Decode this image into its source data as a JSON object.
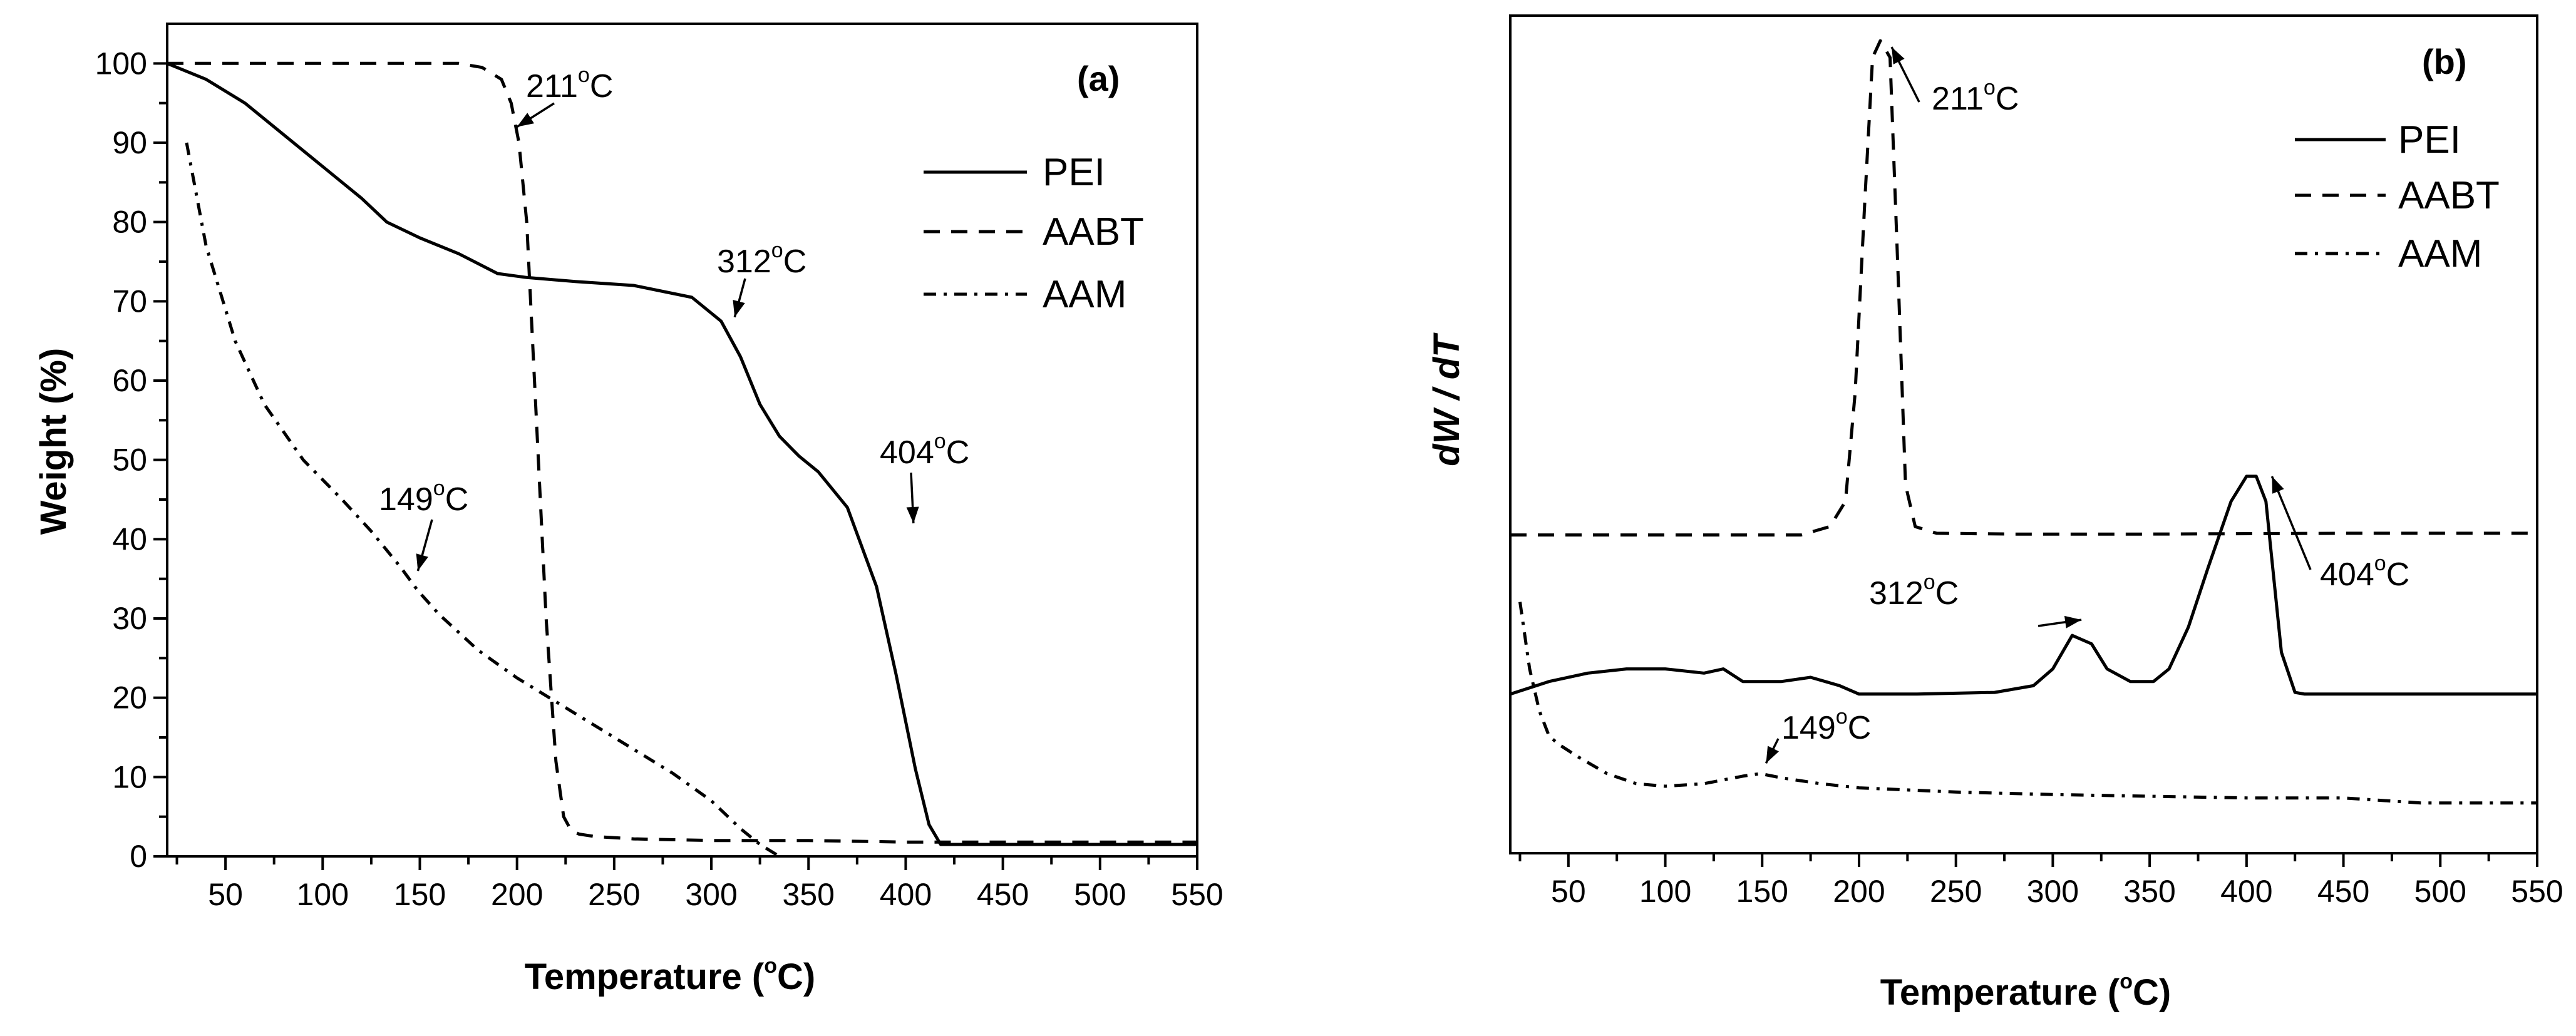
{
  "chart_data": [
    {
      "type": "line",
      "panel_label": "(a)",
      "xlabel_main": "Temperature (",
      "xlabel_sup": "o",
      "xlabel_tail": "C)",
      "ylabel": "Weight (%)",
      "xlim": [
        20,
        550
      ],
      "ylim": [
        0,
        105
      ],
      "xticks": [
        50,
        100,
        150,
        200,
        250,
        300,
        350,
        400,
        450,
        500,
        550
      ],
      "yticks": [
        0,
        10,
        20,
        30,
        40,
        50,
        60,
        70,
        80,
        90,
        100
      ],
      "legend_position": "top-right",
      "series": [
        {
          "name": "PEI",
          "style": "solid",
          "x": [
            20,
            40,
            60,
            80,
            100,
            120,
            133,
            150,
            170,
            190,
            205,
            230,
            260,
            290,
            305,
            315,
            325,
            335,
            345,
            355,
            370,
            385,
            395,
            405,
            412,
            418,
            422,
            430,
            450,
            500,
            550
          ],
          "y": [
            100,
            98,
            95,
            91,
            87,
            83,
            80,
            78,
            76,
            73.5,
            73,
            72.5,
            72,
            70.5,
            67.5,
            63,
            57,
            53,
            50.5,
            48.5,
            44,
            34,
            23,
            11,
            4,
            1.5,
            1.5,
            1.5,
            1.5,
            1.5,
            1.5
          ]
        },
        {
          "name": "AABT",
          "style": "dashed",
          "x": [
            20,
            100,
            150,
            170,
            182,
            192,
            197,
            201,
            205,
            210,
            215,
            220,
            224,
            228,
            232,
            240,
            260,
            300,
            350,
            400,
            450,
            500,
            550
          ],
          "y": [
            100,
            100,
            100,
            100,
            99.5,
            98,
            95,
            90,
            80,
            55,
            30,
            12,
            5,
            3.2,
            2.8,
            2.5,
            2.2,
            2,
            2,
            1.8,
            1.8,
            1.8,
            1.8
          ],
          "annotation": {
            "label": "211",
            "unit": "C",
            "at": [
              200,
              92
            ]
          }
        },
        {
          "name": "AAM",
          "style": "dash-dot",
          "x": [
            30,
            40,
            55,
            70,
            90,
            110,
            125,
            140,
            149,
            160,
            180,
            200,
            220,
            250,
            280,
            300,
            315,
            325,
            335
          ],
          "y": [
            90,
            77,
            65,
            57,
            50,
            45,
            41,
            36.5,
            33.5,
            30.5,
            26,
            22.5,
            19.5,
            15,
            10.5,
            7,
            3.5,
            1.5,
            0
          ],
          "annotation": {
            "label": "149",
            "unit": "C",
            "at": [
              149,
              36
            ]
          }
        }
      ],
      "annotations": [
        {
          "label": "211",
          "unit": "C",
          "target": [
            200,
            92
          ]
        },
        {
          "label": "312",
          "unit": "C",
          "target": [
            312,
            68
          ]
        },
        {
          "label": "404",
          "unit": "C",
          "target": [
            404,
            42
          ]
        },
        {
          "label": "149",
          "unit": "C",
          "target": [
            149,
            36
          ]
        }
      ]
    },
    {
      "type": "line",
      "panel_label": "(b)",
      "xlabel_main": "Temperature (",
      "xlabel_sup": "o",
      "xlabel_tail": "C)",
      "ylabel": "dW / dT",
      "xlim": [
        20,
        550
      ],
      "ylim": [
        0,
        100
      ],
      "xticks": [
        50,
        100,
        150,
        200,
        250,
        300,
        350,
        400,
        450,
        500,
        550
      ],
      "yticks": [],
      "legend_position": "top-right",
      "series": [
        {
          "name": "PEI",
          "style": "solid",
          "x": [
            20,
            40,
            60,
            80,
            100,
            120,
            130,
            140,
            160,
            175,
            190,
            200,
            230,
            270,
            290,
            300,
            310,
            320,
            328,
            340,
            352,
            360,
            370,
            380,
            392,
            400,
            405,
            410,
            418,
            425,
            430,
            450,
            500,
            550
          ],
          "y": [
            19,
            20.5,
            21.5,
            22,
            22,
            21.5,
            22,
            20.5,
            20.5,
            21,
            20,
            19,
            19,
            19.2,
            20,
            22,
            26,
            25,
            22,
            20.5,
            20.5,
            22,
            27,
            34,
            42,
            45,
            45,
            42,
            24,
            19.2,
            19,
            19,
            19,
            19
          ],
          "annotations": [
            {
              "label": "312",
              "unit": "C",
              "target": [
                318,
                26
              ]
            },
            {
              "label": "404",
              "unit": "C",
              "target": [
                406,
                45
              ]
            }
          ]
        },
        {
          "name": "AABT",
          "style": "dashed",
          "x": [
            20,
            100,
            170,
            185,
            193,
            198,
            203,
            207,
            211,
            216,
            220,
            224,
            229,
            240,
            280,
            350,
            450,
            550
          ],
          "y": [
            38,
            38,
            38,
            39,
            42,
            55,
            78,
            95,
            97,
            95,
            70,
            44,
            39,
            38.2,
            38.1,
            38.1,
            38.2,
            38.2
          ],
          "annotations": [
            {
              "label": "211",
              "unit": "C",
              "target": [
                211,
                97
              ]
            }
          ]
        },
        {
          "name": "AAM",
          "style": "dash-dot",
          "x": [
            25,
            30,
            35,
            40,
            45,
            55,
            70,
            85,
            100,
            120,
            140,
            149,
            160,
            180,
            200,
            250,
            300,
            350,
            400,
            450,
            470,
            490,
            520,
            550
          ],
          "y": [
            30,
            22,
            17,
            14,
            13,
            11.5,
            9.5,
            8.3,
            8,
            8.3,
            9.2,
            9.5,
            9,
            8.3,
            7.8,
            7.3,
            7,
            6.8,
            6.6,
            6.6,
            6.3,
            6,
            6,
            6
          ],
          "annotations": [
            {
              "label": "149",
              "unit": "C",
              "target": [
                152,
                10
              ]
            }
          ]
        }
      ]
    }
  ]
}
